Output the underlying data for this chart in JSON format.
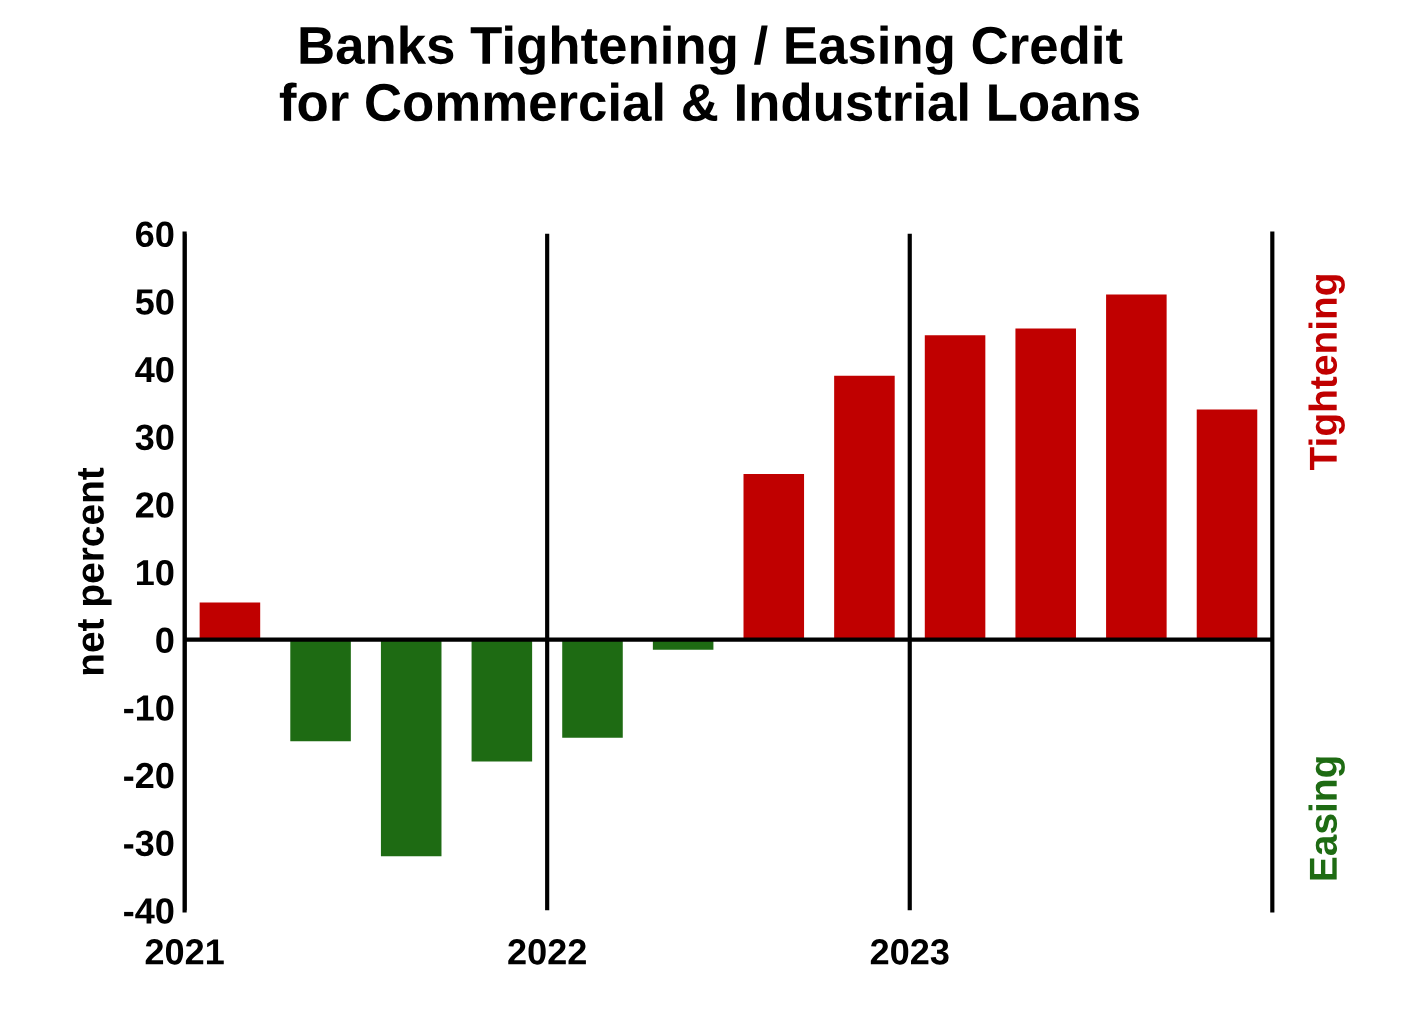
{
  "chart_data": {
    "type": "bar",
    "title": "Banks Tightening / Easing Credit\nfor Commercial & Industrial Loans",
    "ylabel": "net percent",
    "x": [
      2021.125,
      2021.375,
      2021.625,
      2021.875,
      2022.125,
      2022.375,
      2022.625,
      2022.875,
      2023.125,
      2023.375,
      2023.625,
      2023.875
    ],
    "series": [
      {
        "name": "Tightening",
        "color": "#c00000",
        "values": [
          5.5,
          null,
          null,
          null,
          null,
          null,
          24.5,
          39,
          45,
          46,
          51,
          34
        ]
      },
      {
        "name": "Easing",
        "color": "#1e6b13",
        "values": [
          null,
          -15,
          -32,
          -18,
          -14.5,
          -1.5,
          null,
          null,
          null,
          null,
          null,
          null
        ]
      }
    ],
    "xlim": [
      2021,
      2024
    ],
    "xticks": [
      2021,
      2022,
      2023
    ],
    "ylim": [
      -40,
      60
    ],
    "yticks": [
      -40,
      -30,
      -20,
      -10,
      0,
      10,
      20,
      30,
      40,
      50,
      60
    ],
    "grid": "x",
    "ref_lines": [
      {
        "axis": "y",
        "value": 0
      }
    ]
  }
}
